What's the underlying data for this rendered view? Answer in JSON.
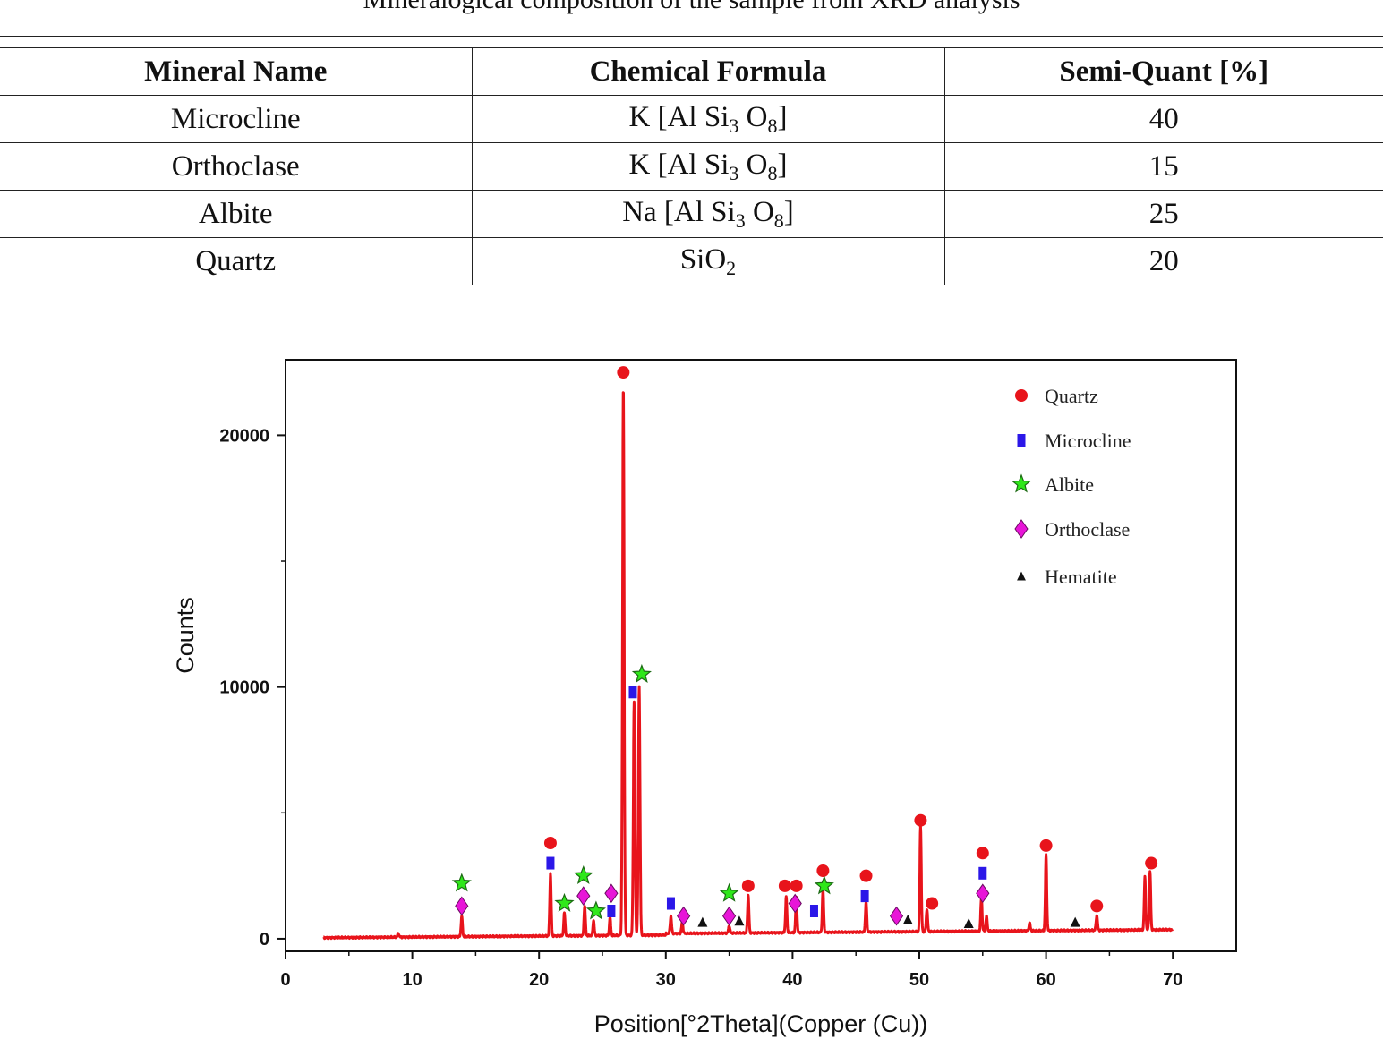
{
  "caption": "Mineralogical composition of the sample from XRD analysis",
  "table": {
    "headers": [
      "Mineral Name",
      "Chemical Formula",
      "Semi-Quant [%]"
    ],
    "rows": [
      {
        "name": "Microcline",
        "formula": {
          "pre": "K [Al Si",
          "s1": "3",
          "mid": " O",
          "s2": "8",
          "post": "]"
        },
        "quant": "40"
      },
      {
        "name": "Orthoclase",
        "formula": {
          "pre": "K [Al Si",
          "s1": "3",
          "mid": " O",
          "s2": "8",
          "post": "]"
        },
        "quant": "15"
      },
      {
        "name": "Albite",
        "formula": {
          "pre": "Na [Al Si",
          "s1": "3",
          "mid": " O",
          "s2": "8",
          "post": "]"
        },
        "quant": "25"
      },
      {
        "name": "Quartz",
        "formula": {
          "pre": "SiO",
          "s1": "2",
          "mid": "",
          "s2": "",
          "post": ""
        },
        "quant": "20"
      }
    ]
  },
  "chart_data": {
    "type": "line",
    "xlabel": "Position[°2Theta](Copper (Cu))",
    "ylabel": "Counts",
    "xlim": [
      0,
      75
    ],
    "ylim": [
      -500,
      23000
    ],
    "xticks": [
      0,
      10,
      20,
      30,
      40,
      50,
      60,
      70
    ],
    "yticks": [
      0,
      10000,
      20000
    ],
    "grid": false,
    "legend_position": "top-right",
    "line_color": "#e8141b",
    "baseline": {
      "start": 3,
      "end": 70,
      "start_value": 40,
      "end_value": 300
    },
    "peaks": [
      {
        "x": 8.9,
        "y": 150
      },
      {
        "x": 13.9,
        "y": 800
      },
      {
        "x": 20.9,
        "y": 2500
      },
      {
        "x": 22.0,
        "y": 900
      },
      {
        "x": 23.6,
        "y": 1200
      },
      {
        "x": 24.3,
        "y": 600
      },
      {
        "x": 25.6,
        "y": 700
      },
      {
        "x": 26.65,
        "y": 21800
      },
      {
        "x": 27.5,
        "y": 9300
      },
      {
        "x": 27.9,
        "y": 9900
      },
      {
        "x": 30.4,
        "y": 700
      },
      {
        "x": 31.3,
        "y": 450
      },
      {
        "x": 35.0,
        "y": 300
      },
      {
        "x": 36.5,
        "y": 1500
      },
      {
        "x": 39.5,
        "y": 1400
      },
      {
        "x": 40.3,
        "y": 1400
      },
      {
        "x": 42.4,
        "y": 1700
      },
      {
        "x": 45.8,
        "y": 1200
      },
      {
        "x": 50.1,
        "y": 4200
      },
      {
        "x": 50.6,
        "y": 900
      },
      {
        "x": 54.9,
        "y": 1300
      },
      {
        "x": 55.3,
        "y": 600
      },
      {
        "x": 58.7,
        "y": 300
      },
      {
        "x": 60.0,
        "y": 3000
      },
      {
        "x": 64.0,
        "y": 600
      },
      {
        "x": 67.8,
        "y": 2100
      },
      {
        "x": 68.2,
        "y": 2300
      }
    ],
    "markers": {
      "Quartz": [
        [
          20.9,
          3800
        ],
        [
          26.65,
          22500
        ],
        [
          36.5,
          2100
        ],
        [
          39.4,
          2100
        ],
        [
          40.3,
          2100
        ],
        [
          42.4,
          2700
        ],
        [
          45.8,
          2500
        ],
        [
          50.1,
          4700
        ],
        [
          51.0,
          1400
        ],
        [
          55.0,
          3400
        ],
        [
          60.0,
          3700
        ],
        [
          64.0,
          1300
        ],
        [
          68.3,
          3000
        ]
      ],
      "Microcline": [
        [
          20.9,
          3000
        ],
        [
          25.7,
          1100
        ],
        [
          27.4,
          9800
        ],
        [
          30.4,
          1400
        ],
        [
          41.7,
          1100
        ],
        [
          45.7,
          1700
        ],
        [
          55.0,
          2600
        ]
      ],
      "Albite": [
        [
          13.9,
          2200
        ],
        [
          22.0,
          1400
        ],
        [
          23.5,
          2500
        ],
        [
          24.5,
          1100
        ],
        [
          28.1,
          10500
        ],
        [
          35.0,
          1800
        ],
        [
          42.5,
          2100
        ]
      ],
      "Orthoclase": [
        [
          13.9,
          1300
        ],
        [
          23.5,
          1700
        ],
        [
          25.7,
          1800
        ],
        [
          31.4,
          900
        ],
        [
          35.0,
          900
        ],
        [
          40.2,
          1400
        ],
        [
          48.2,
          900
        ],
        [
          55.0,
          1800
        ]
      ],
      "Hematite": [
        [
          32.9,
          650
        ],
        [
          35.8,
          700
        ],
        [
          49.1,
          750
        ],
        [
          53.9,
          600
        ],
        [
          62.3,
          650
        ]
      ]
    },
    "legend": [
      {
        "name": "Quartz",
        "color": "#e8141b",
        "shape": "circle"
      },
      {
        "name": "Microcline",
        "color": "#2b17e8",
        "shape": "rect"
      },
      {
        "name": "Albite",
        "color": "#2fe81a",
        "shape": "star"
      },
      {
        "name": "Orthoclase",
        "color": "#e815d8",
        "shape": "diamond"
      },
      {
        "name": "Hematite",
        "color": "#111111",
        "shape": "triangle"
      }
    ]
  }
}
